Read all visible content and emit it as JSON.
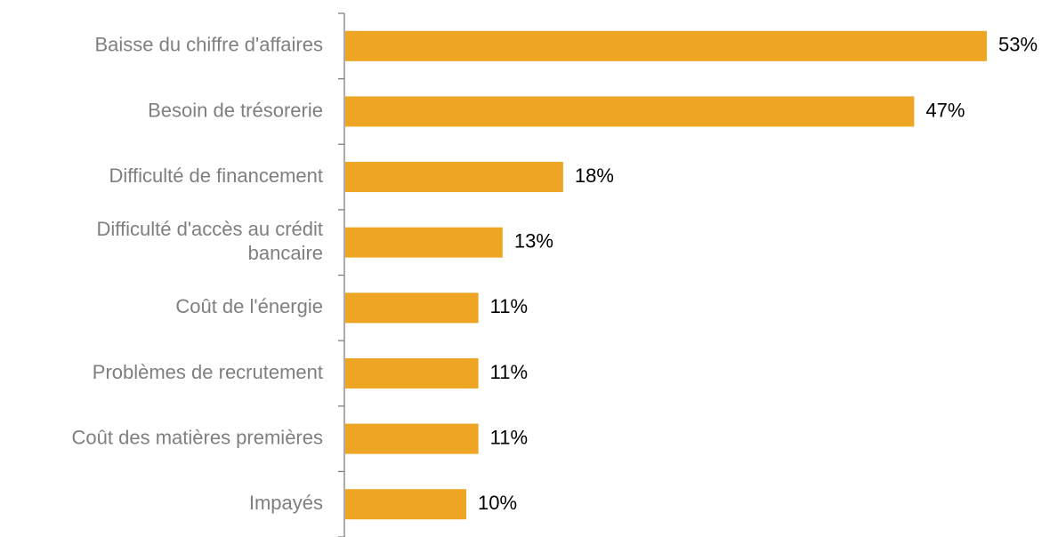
{
  "chart_data": {
    "type": "bar",
    "orientation": "horizontal",
    "categories": [
      [
        "Baisse du chiffre d'affaires"
      ],
      [
        "Besoin de trésorerie"
      ],
      [
        "Difficulté de financement"
      ],
      [
        "Difficulté d'accès au crédit",
        "bancaire"
      ],
      [
        "Coût de l'énergie"
      ],
      [
        "Problèmes de recrutement"
      ],
      [
        "Coût des matières premières"
      ],
      [
        "Impayés"
      ]
    ],
    "values": [
      53,
      47,
      18,
      13,
      11,
      11,
      11,
      10
    ],
    "value_labels": [
      "53%",
      "47%",
      "18%",
      "13%",
      "11%",
      "11%",
      "11%",
      "10%"
    ],
    "unit": "%",
    "title": "",
    "xlabel": "",
    "ylabel": "",
    "xlim": [
      0,
      53
    ],
    "grid": false,
    "legend": "none",
    "colors": {
      "bar": "#EDA523",
      "axis": "#7f7f7f",
      "category_text": "#7f7f7f",
      "value_text": "#000000"
    }
  }
}
